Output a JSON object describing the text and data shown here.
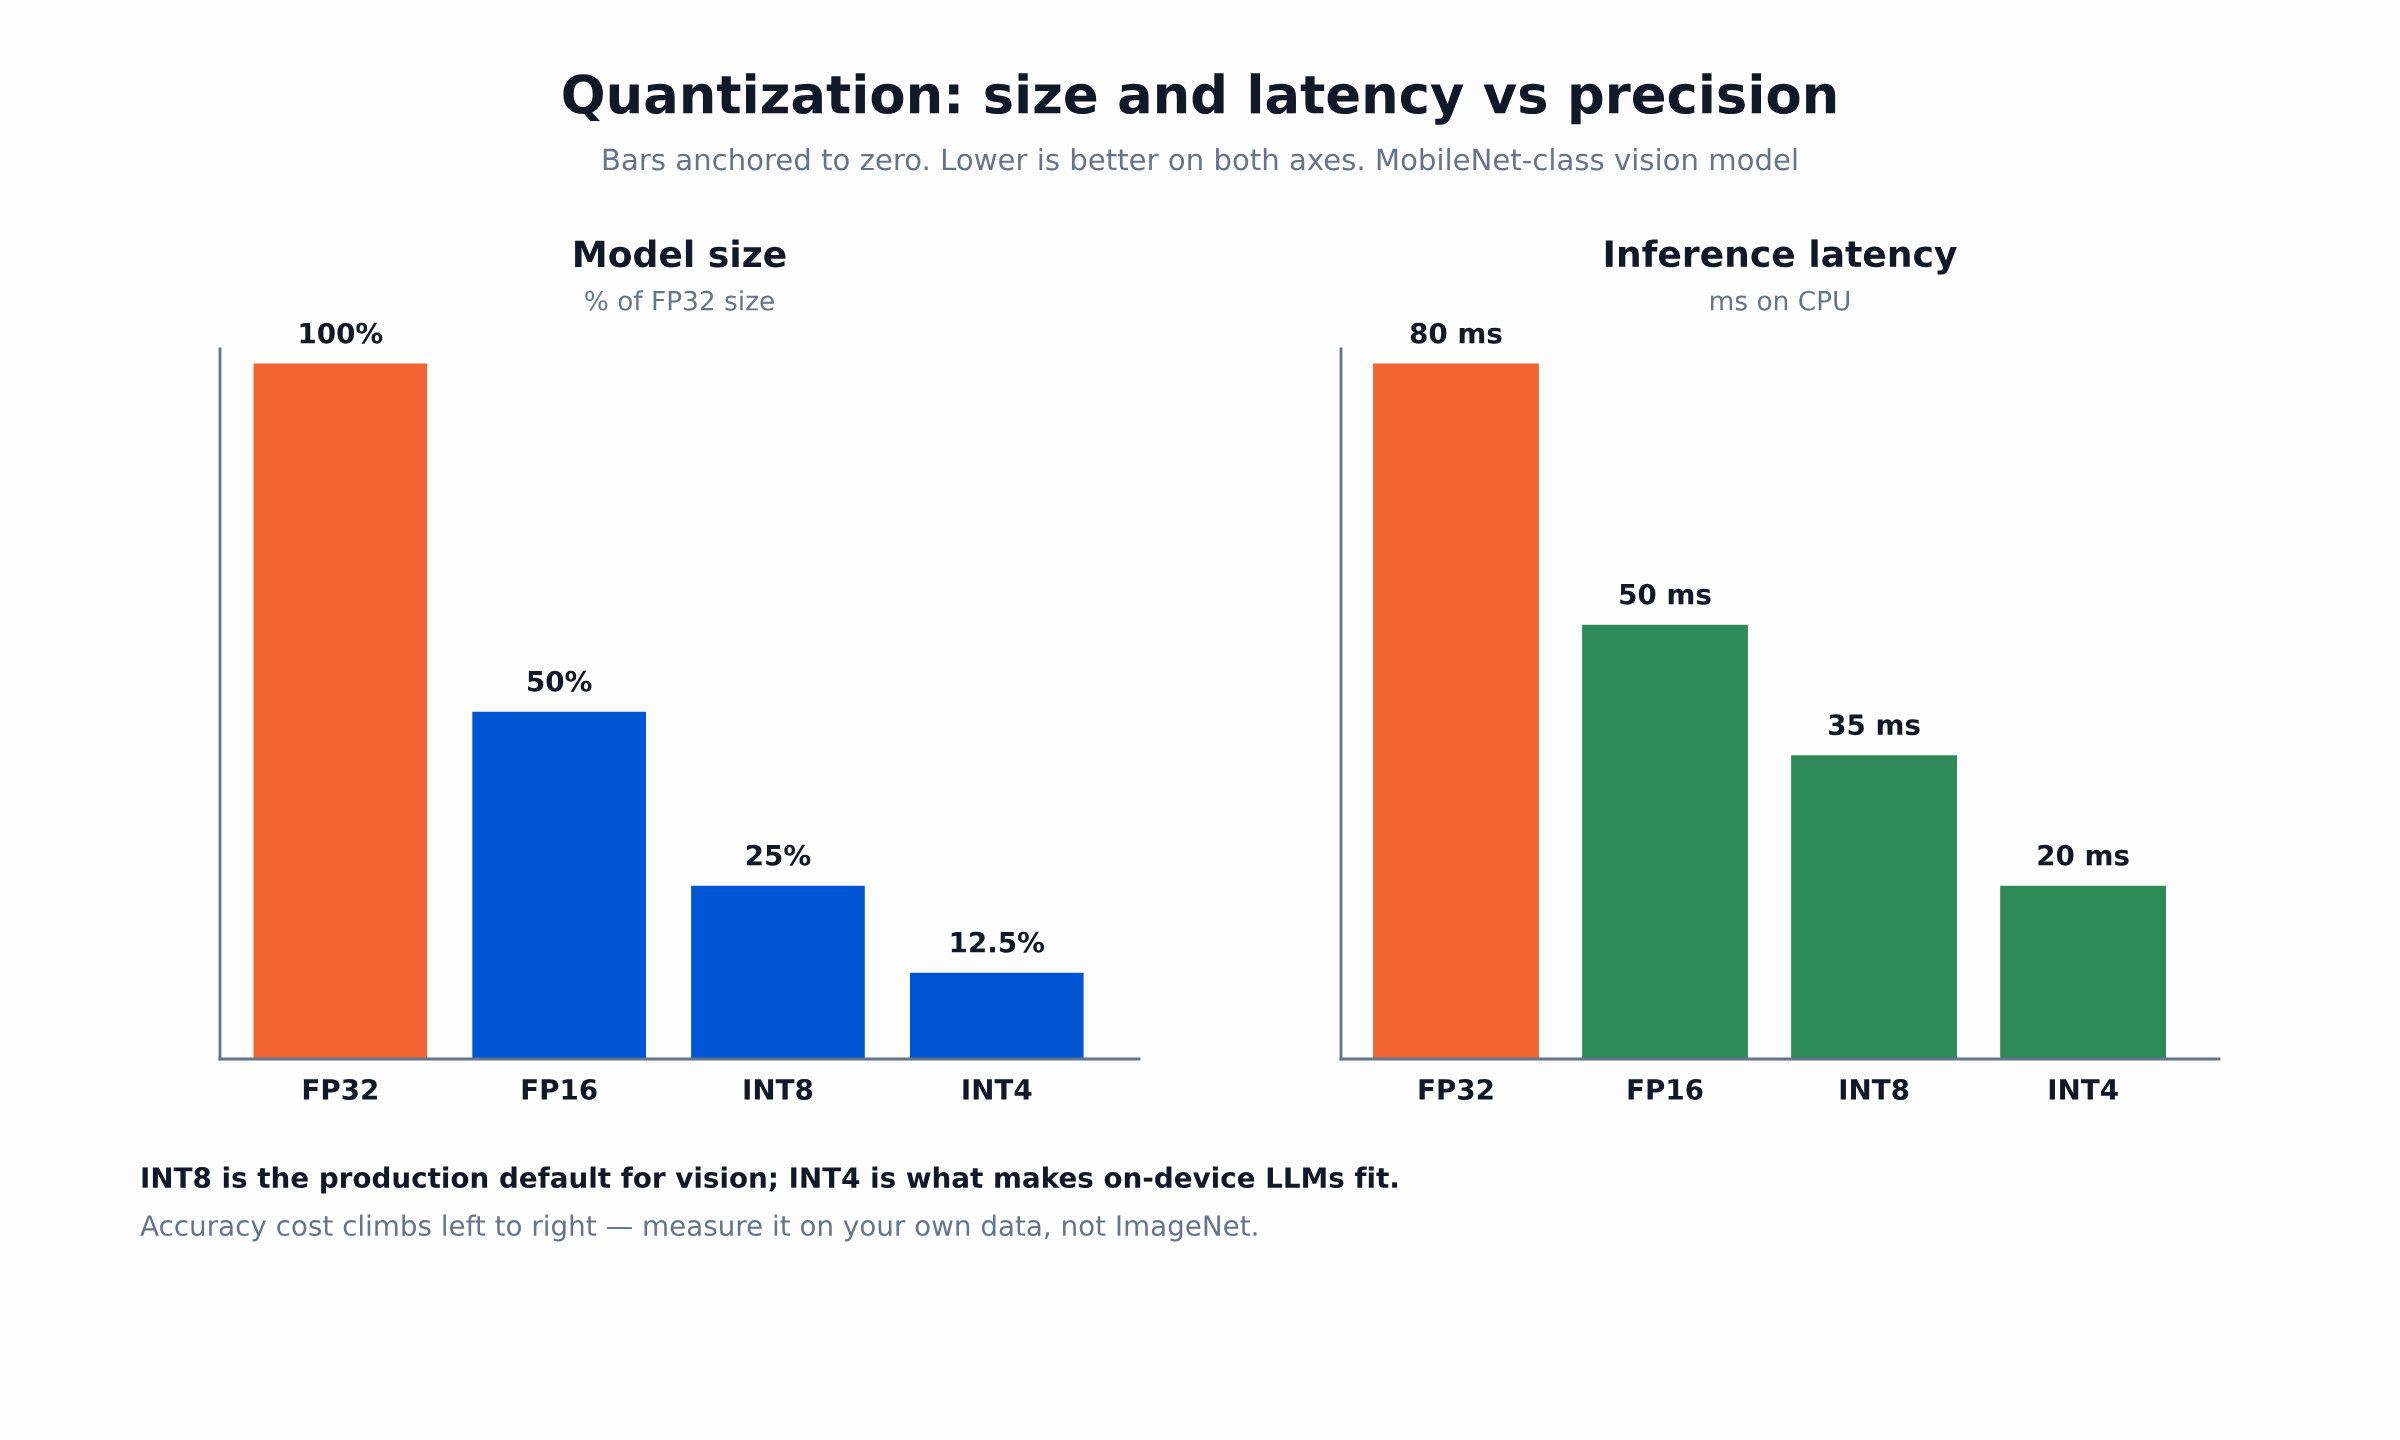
{
  "chart_data": [
    {
      "type": "other",
      "title": "Quantization: size and latency vs precision",
      "subtitle": "Bars anchored to zero. Lower is better on both axes. MobileNet-class vision model",
      "annotations": [
        "INT8 is the production default for vision; INT4 is what makes on-device LLMs fit.",
        "Accuracy cost climbs left to right — measure it on your own data, not ImageNet."
      ]
    },
    {
      "type": "bar",
      "title": "Model size",
      "subtitle": "% of FP32 size",
      "categories": [
        "FP32",
        "FP16",
        "INT8",
        "INT4"
      ],
      "values": [
        100,
        50,
        25,
        12.5
      ],
      "colors": [
        "#f26533",
        "#0055d4",
        "#0055d4",
        "#0055d4"
      ],
      "value_labels": [
        "100%",
        "50%",
        "25%",
        "12.5%"
      ],
      "tick_labels": "x",
      "grid": false
    },
    {
      "type": "bar",
      "title": "Inference latency",
      "subtitle": "ms on CPU",
      "categories": [
        "FP32",
        "FP16",
        "INT8",
        "INT4"
      ],
      "values": [
        80,
        50,
        35,
        20
      ],
      "colors": [
        "#f26533",
        "#2e8b57",
        "#2e8b57",
        "#2e8b57"
      ],
      "value_labels": [
        "80 ms",
        "50 ms",
        "35 ms",
        "20 ms"
      ],
      "tick_labels": "x",
      "grid": false
    }
  ]
}
